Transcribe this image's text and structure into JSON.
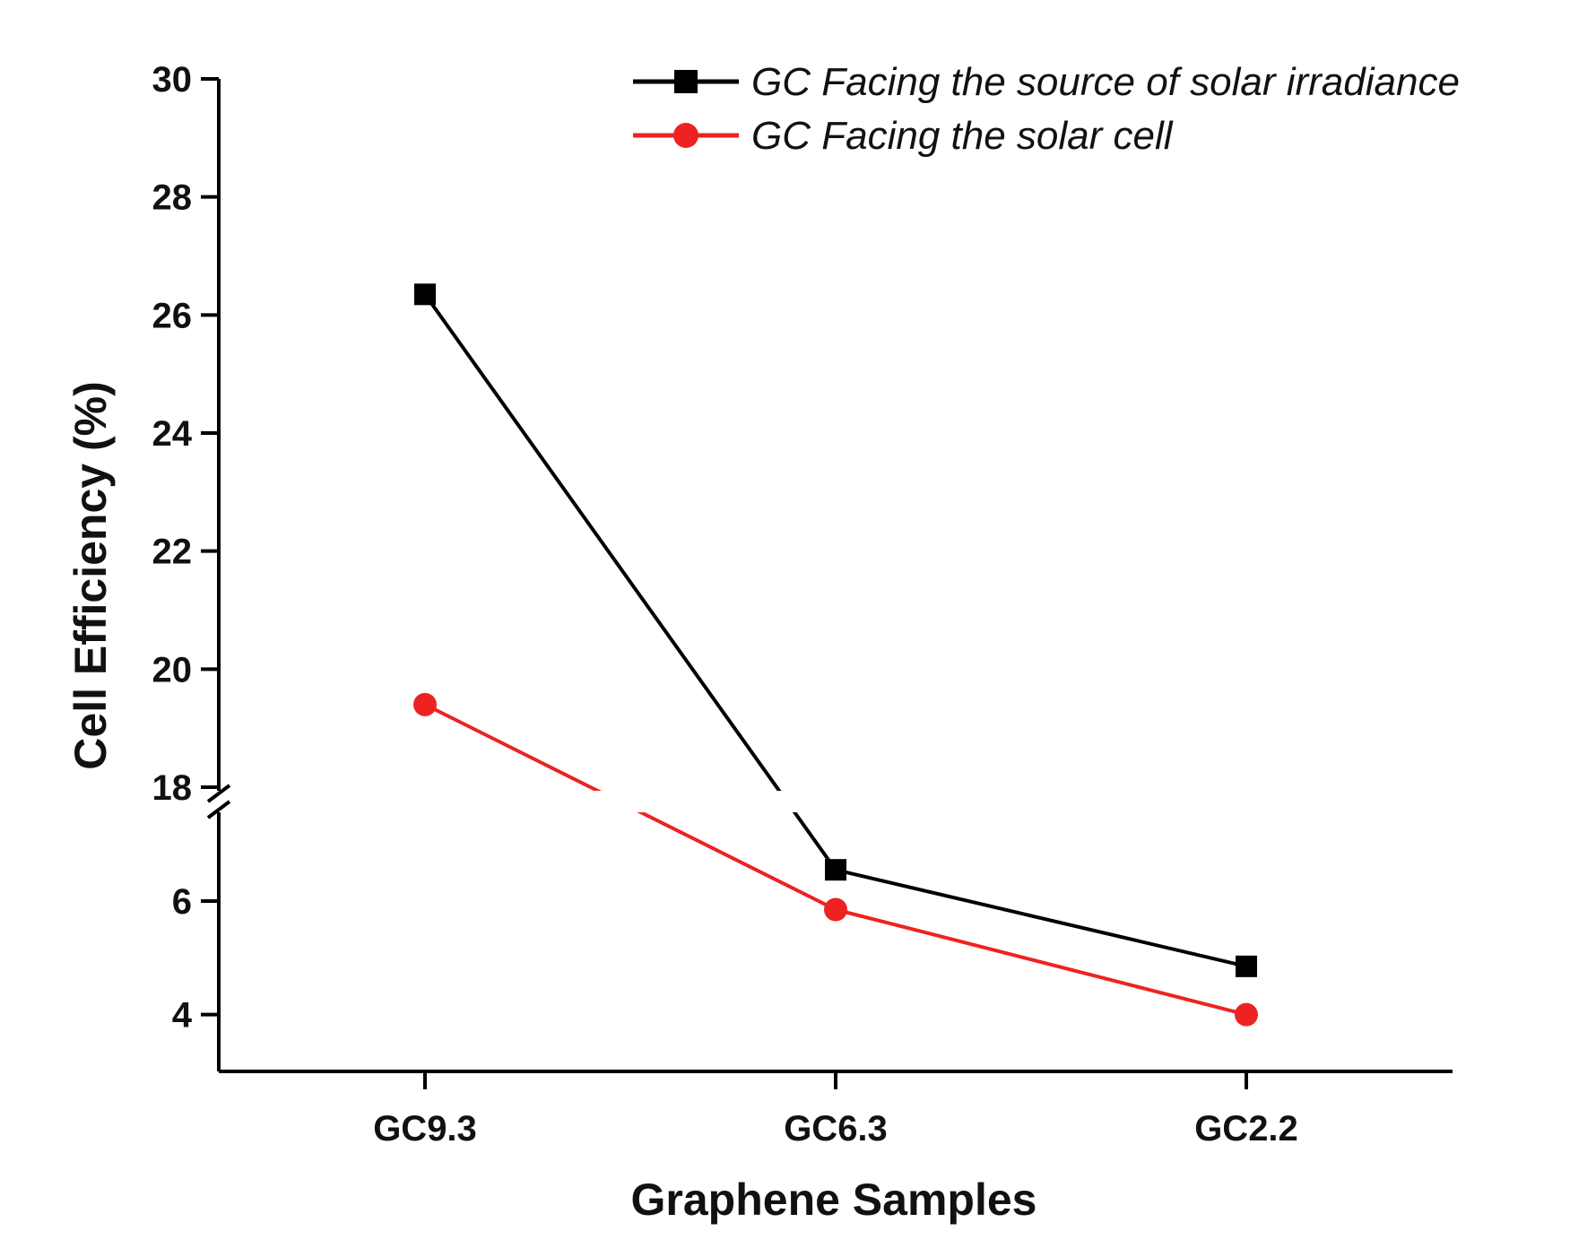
{
  "chart_data": {
    "type": "line",
    "title": "",
    "xlabel": "Graphene Samples",
    "ylabel": "Cell Efficiency (%)",
    "categories": [
      "GC9.3",
      "GC6.3",
      "GC2.2"
    ],
    "y_axis_break": {
      "lower_range": [
        3,
        7.5
      ],
      "upper_range": [
        18,
        30
      ],
      "lower_ticks": [
        4,
        6
      ],
      "upper_ticks": [
        18,
        20,
        22,
        24,
        26,
        28,
        30
      ]
    },
    "legend_position": "top-right",
    "series": [
      {
        "name": "GC Facing the source of solar irradiance",
        "marker": "square",
        "color": "#000000",
        "values": [
          26.35,
          6.55,
          4.85
        ]
      },
      {
        "name": "GC Facing the solar cell",
        "marker": "circle",
        "color": "#ee2222",
        "values": [
          19.4,
          5.85,
          4.0
        ]
      }
    ]
  }
}
